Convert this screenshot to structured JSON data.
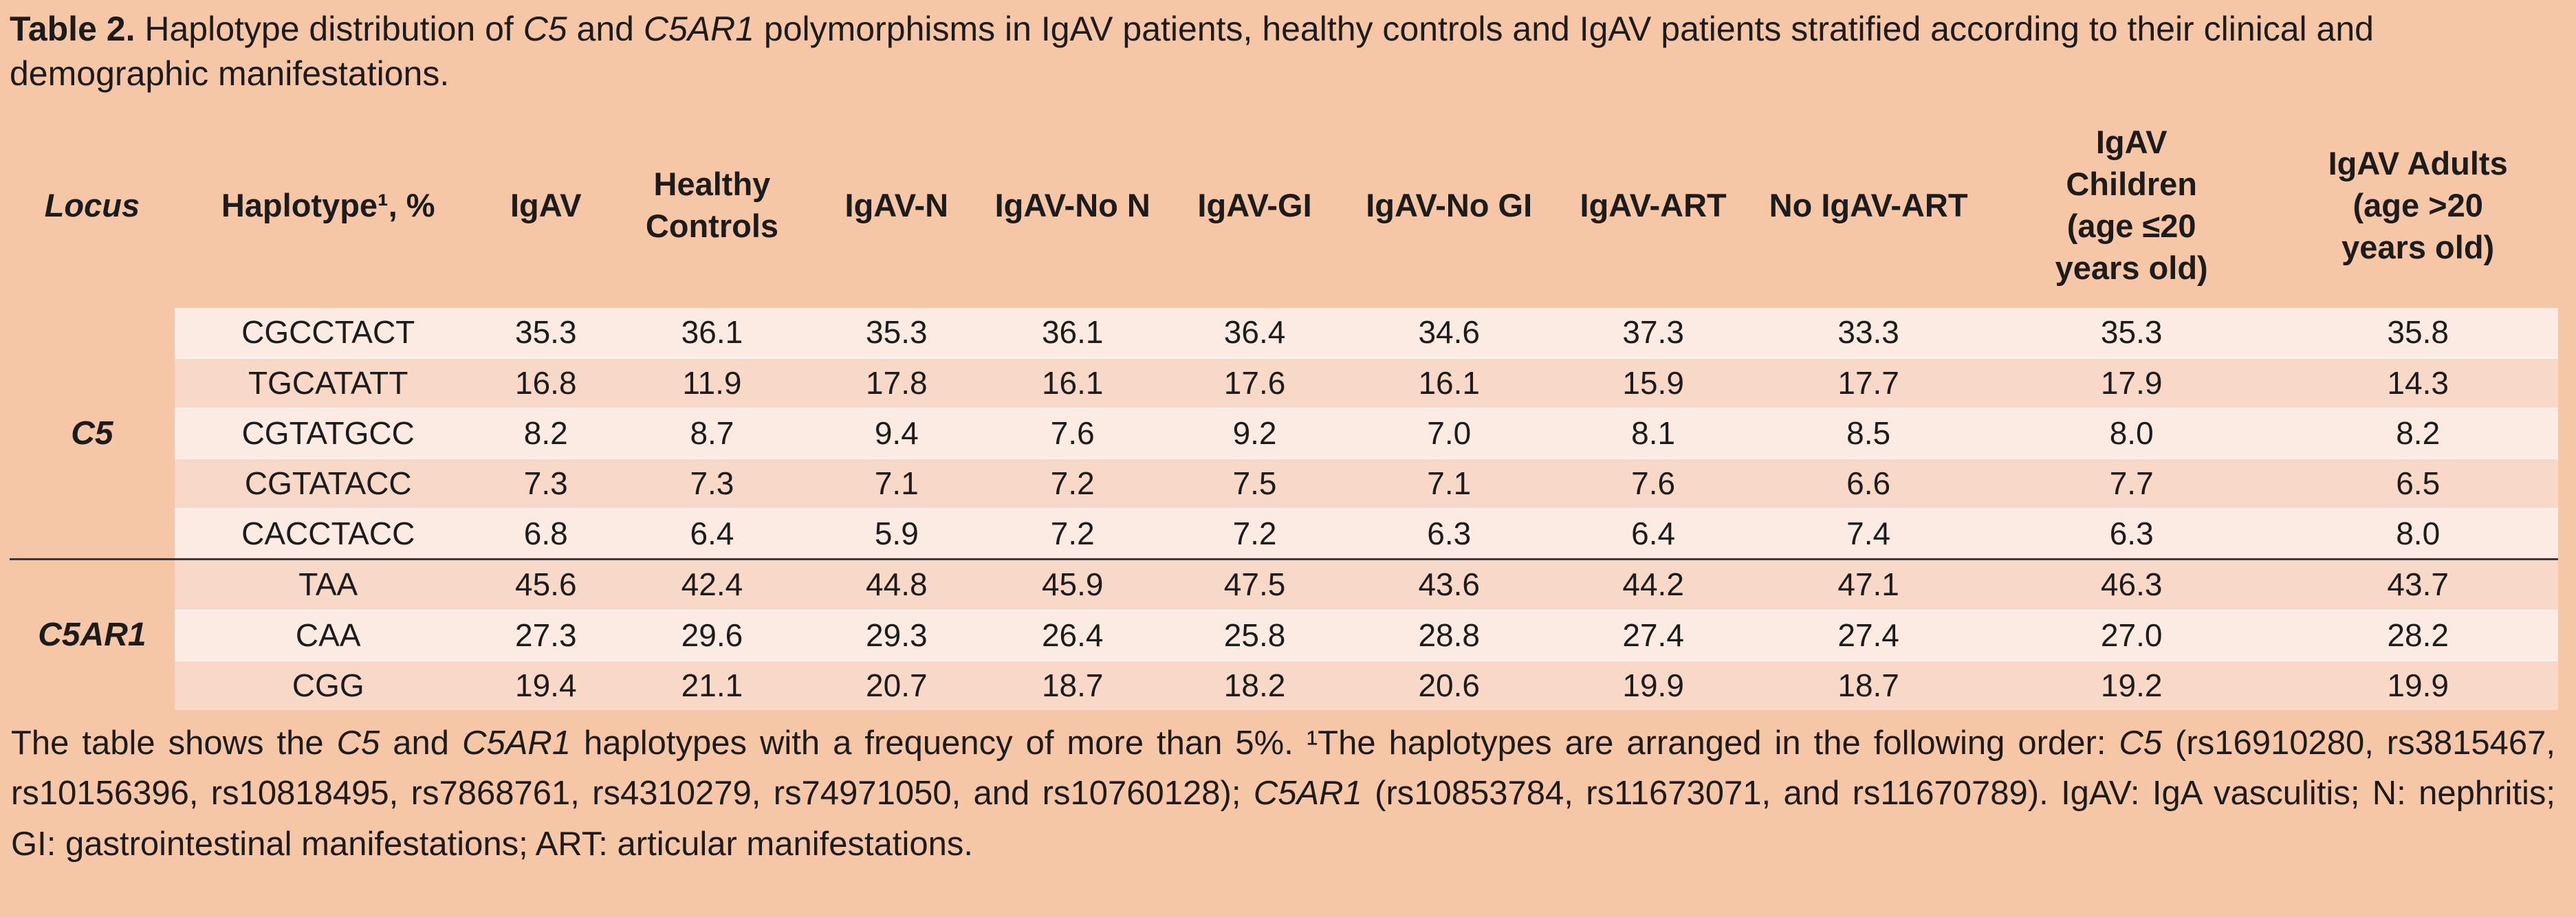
{
  "title": {
    "segments": [
      {
        "t": "Table 2.",
        "b": true
      },
      {
        "t": " Haplotype distribution of "
      },
      {
        "t": "C5",
        "i": true
      },
      {
        "t": " and "
      },
      {
        "t": "C5AR1",
        "i": true
      },
      {
        "t": " polymorphisms in IgAV patients, healthy controls and IgAV patients stratified according to their clinical and demographic manifestations."
      }
    ]
  },
  "table": {
    "headers": [
      {
        "key": "locus",
        "label": "Locus"
      },
      {
        "key": "haplotype",
        "label": "Haplotype¹, %"
      },
      {
        "key": "igav",
        "label": "IgAV"
      },
      {
        "key": "healthy-controls",
        "label": "Healthy Controls"
      },
      {
        "key": "igav-n",
        "label": "IgAV-N"
      },
      {
        "key": "igav-no-n",
        "label": "IgAV-No N"
      },
      {
        "key": "igav-gi",
        "label": "IgAV-GI"
      },
      {
        "key": "igav-no-gi",
        "label": "IgAV-No GI"
      },
      {
        "key": "igav-art",
        "label": "IgAV-ART"
      },
      {
        "key": "no-igav-art",
        "label": "No IgAV-ART"
      },
      {
        "key": "igav-children",
        "label": "IgAV Children (age ≤20 years old)"
      },
      {
        "key": "igav-adults",
        "label": "IgAV Adults (age >20 years old)"
      }
    ],
    "groups": [
      {
        "locus": "C5",
        "rows": [
          {
            "haplotype": "CGCCTACT",
            "values": [
              "35.3",
              "36.1",
              "35.3",
              "36.1",
              "36.4",
              "34.6",
              "37.3",
              "33.3",
              "35.3",
              "35.8"
            ]
          },
          {
            "haplotype": "TGCATATT",
            "values": [
              "16.8",
              "11.9",
              "17.8",
              "16.1",
              "17.6",
              "16.1",
              "15.9",
              "17.7",
              "17.9",
              "14.3"
            ]
          },
          {
            "haplotype": "CGTATGCC",
            "values": [
              "8.2",
              "8.7",
              "9.4",
              "7.6",
              "9.2",
              "7.0",
              "8.1",
              "8.5",
              "8.0",
              "8.2"
            ]
          },
          {
            "haplotype": "CGTATACC",
            "values": [
              "7.3",
              "7.3",
              "7.1",
              "7.2",
              "7.5",
              "7.1",
              "7.6",
              "6.6",
              "7.7",
              "6.5"
            ]
          },
          {
            "haplotype": "CACCTACC",
            "values": [
              "6.8",
              "6.4",
              "5.9",
              "7.2",
              "7.2",
              "6.3",
              "6.4",
              "7.4",
              "6.3",
              "8.0"
            ]
          }
        ]
      },
      {
        "locus": "C5AR1",
        "rows": [
          {
            "haplotype": "TAA",
            "values": [
              "45.6",
              "42.4",
              "44.8",
              "45.9",
              "47.5",
              "43.6",
              "44.2",
              "47.1",
              "46.3",
              "43.7"
            ]
          },
          {
            "haplotype": "CAA",
            "values": [
              "27.3",
              "29.6",
              "29.3",
              "26.4",
              "25.8",
              "28.8",
              "27.4",
              "27.4",
              "27.0",
              "28.2"
            ]
          },
          {
            "haplotype": "CGG",
            "values": [
              "19.4",
              "21.1",
              "20.7",
              "18.7",
              "18.2",
              "20.6",
              "19.9",
              "18.7",
              "19.2",
              "19.9"
            ]
          }
        ]
      }
    ]
  },
  "footnote": {
    "segments": [
      {
        "t": "The table shows the "
      },
      {
        "t": "C5",
        "i": true
      },
      {
        "t": " and "
      },
      {
        "t": "C5AR1",
        "i": true
      },
      {
        "t": " haplotypes with a frequency of more than 5%. ¹The haplotypes are arranged in the following order: "
      },
      {
        "t": "C5",
        "i": true
      },
      {
        "t": " (rs16910280, rs3815467, rs10156396, rs10818495, rs7868761, rs4310279, rs74971050, and rs10760128); "
      },
      {
        "t": "C5AR1",
        "i": true
      },
      {
        "t": " (rs10853784, rs11673071, and rs11670789). IgAV: IgA vasculitis; N: nephritis; GI: gastrointestinal manifestations; ART: articular manifestations."
      }
    ]
  },
  "colors": {
    "background": "#f5c7a6",
    "row_light": "#fcebe3",
    "row_dark": "#f8d8c6",
    "separator": "#383838",
    "text": "#1c1c1c"
  }
}
